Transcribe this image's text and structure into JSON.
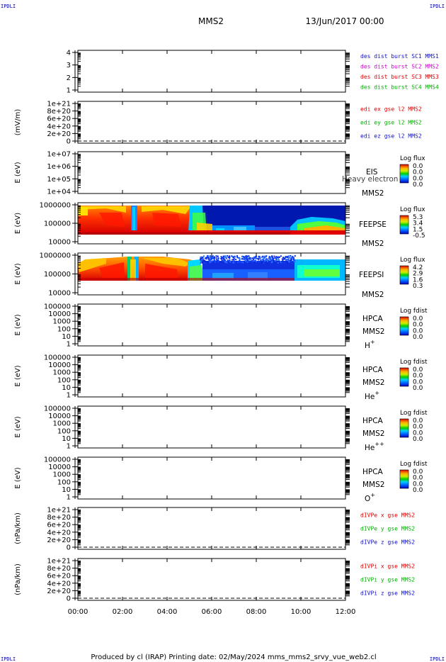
{
  "corner_labels": {
    "top_left": "IPDLI",
    "top_right": "IPDLI",
    "bottom_left": "IPDLI",
    "bottom_right": "IPDLI"
  },
  "header": {
    "title": "MMS2",
    "date": "13/Jun/2017 00:00"
  },
  "footer": {
    "text": "Produced by cl (IRAP)   Printing date: 02/May/2024   mms_mms2_srvy_vue_web2.cl"
  },
  "chart_data": {
    "type": "stacked_time_series",
    "x_ticks": [
      "00:00",
      "02:00",
      "04:00",
      "06:00",
      "08:00",
      "10:00",
      "12:00"
    ],
    "panels": [
      {
        "id": "p1",
        "type": "line",
        "ylabel": "",
        "ticks": [
          "1",
          "2",
          "3",
          "4"
        ],
        "legend": [
          {
            "text": "des dist burst SC1 MMS1",
            "color": "#1010c8"
          },
          {
            "text": "des dist burst SC2 MMS2",
            "color": "#d000d0"
          },
          {
            "text": "des dist burst SC3 MMS3",
            "color": "#e00000"
          },
          {
            "text": "des dist burst SC4 MMS4",
            "color": "#00b000"
          }
        ]
      },
      {
        "id": "p2",
        "type": "line",
        "ylabel": "(mV/m)",
        "ticks": [
          "0",
          "2e+20",
          "4e+20",
          "6e+20",
          "8e+20",
          "1e+21"
        ],
        "legend": [
          {
            "text": "edi ex gse l2 MMS2",
            "color": "#e00000"
          },
          {
            "text": "edi ey gse l2 MMS2",
            "color": "#00b000"
          },
          {
            "text": "edi ez gse l2 MMS2",
            "color": "#1010c8"
          }
        ]
      },
      {
        "id": "p3",
        "type": "spectrogram",
        "ylabel": "E (eV)",
        "ticks": [
          "1e+04",
          "1e+05",
          "1e+06",
          "1e+07"
        ],
        "instrument": "EIS",
        "spacecraft": "MMS2",
        "overlay": "Heavy electron to",
        "colorbar": {
          "label": "Log flux",
          "values": [
            "0.0",
            "0.0",
            "0.0",
            "0.0"
          ]
        }
      },
      {
        "id": "p4",
        "type": "spectrogram",
        "ylabel": "E (eV)",
        "ticks": [
          "10000",
          "100000",
          "1000000"
        ],
        "instrument": "FEEPSE",
        "spacecraft": "MMS2",
        "colorbar": {
          "label": "Log flux",
          "values": [
            "5.3",
            "3.4",
            "1.5",
            "-0.5"
          ]
        }
      },
      {
        "id": "p5",
        "type": "spectrogram",
        "ylabel": "E (eV)",
        "ticks": [
          "10000",
          "100000",
          "1000000"
        ],
        "instrument": "FEEPSI",
        "spacecraft": "MMS2",
        "colorbar": {
          "label": "Log flux",
          "values": [
            "4.2",
            "2.9",
            "1.6",
            "0.3"
          ]
        }
      },
      {
        "id": "p6",
        "type": "spectrogram",
        "ylabel": "E (eV)",
        "ticks": [
          "1",
          "10",
          "100",
          "1000",
          "10000",
          "100000"
        ],
        "instrument": "HPCA",
        "spacecraft": "MMS2",
        "species": "H",
        "species_sup": "+",
        "colorbar": {
          "label": "Log fdist",
          "values": [
            "0.0",
            "0.0",
            "0.0",
            "0.0"
          ]
        }
      },
      {
        "id": "p7",
        "type": "spectrogram",
        "ylabel": "E (eV)",
        "ticks": [
          "1",
          "10",
          "100",
          "1000",
          "10000",
          "100000"
        ],
        "instrument": "HPCA",
        "spacecraft": "MMS2",
        "species": "He",
        "species_sup": "+",
        "colorbar": {
          "label": "Log fdist",
          "values": [
            "0.0",
            "0.0",
            "0.0",
            "0.0"
          ]
        }
      },
      {
        "id": "p8",
        "type": "spectrogram",
        "ylabel": "E (eV)",
        "ticks": [
          "1",
          "10",
          "100",
          "1000",
          "10000",
          "100000"
        ],
        "instrument": "HPCA",
        "spacecraft": "MMS2",
        "species": "He",
        "species_sup": "++",
        "colorbar": {
          "label": "Log fdist",
          "values": [
            "0.0",
            "0.0",
            "0.0",
            "0.0"
          ]
        }
      },
      {
        "id": "p9",
        "type": "spectrogram",
        "ylabel": "E (eV)",
        "ticks": [
          "1",
          "10",
          "100",
          "1000",
          "10000",
          "100000"
        ],
        "instrument": "HPCA",
        "spacecraft": "MMS2",
        "species": "O",
        "species_sup": "+",
        "colorbar": {
          "label": "Log fdist",
          "values": [
            "0.0",
            "0.0",
            "0.0",
            "0.0"
          ]
        }
      },
      {
        "id": "p10",
        "type": "line",
        "ylabel": "(nPa/km)",
        "ticks": [
          "0",
          "2e+20",
          "4e+20",
          "6e+20",
          "8e+20",
          "1e+21"
        ],
        "legend": [
          {
            "text": "dIVPe x gse MMS2",
            "color": "#e00000"
          },
          {
            "text": "dIVPe y gse MMS2",
            "color": "#00b000"
          },
          {
            "text": "dIVPe z gse MMS2",
            "color": "#1010c8"
          }
        ]
      },
      {
        "id": "p11",
        "type": "line",
        "ylabel": "(nPa/km)",
        "ticks": [
          "0",
          "2e+20",
          "4e+20",
          "6e+20",
          "8e+20",
          "1e+21"
        ],
        "legend": [
          {
            "text": "dIVPi x gse MMS2",
            "color": "#e00000"
          },
          {
            "text": "dIVPi y gse MMS2",
            "color": "#00b000"
          },
          {
            "text": "dIVPi z gse MMS2",
            "color": "#1010c8"
          }
        ]
      }
    ]
  }
}
